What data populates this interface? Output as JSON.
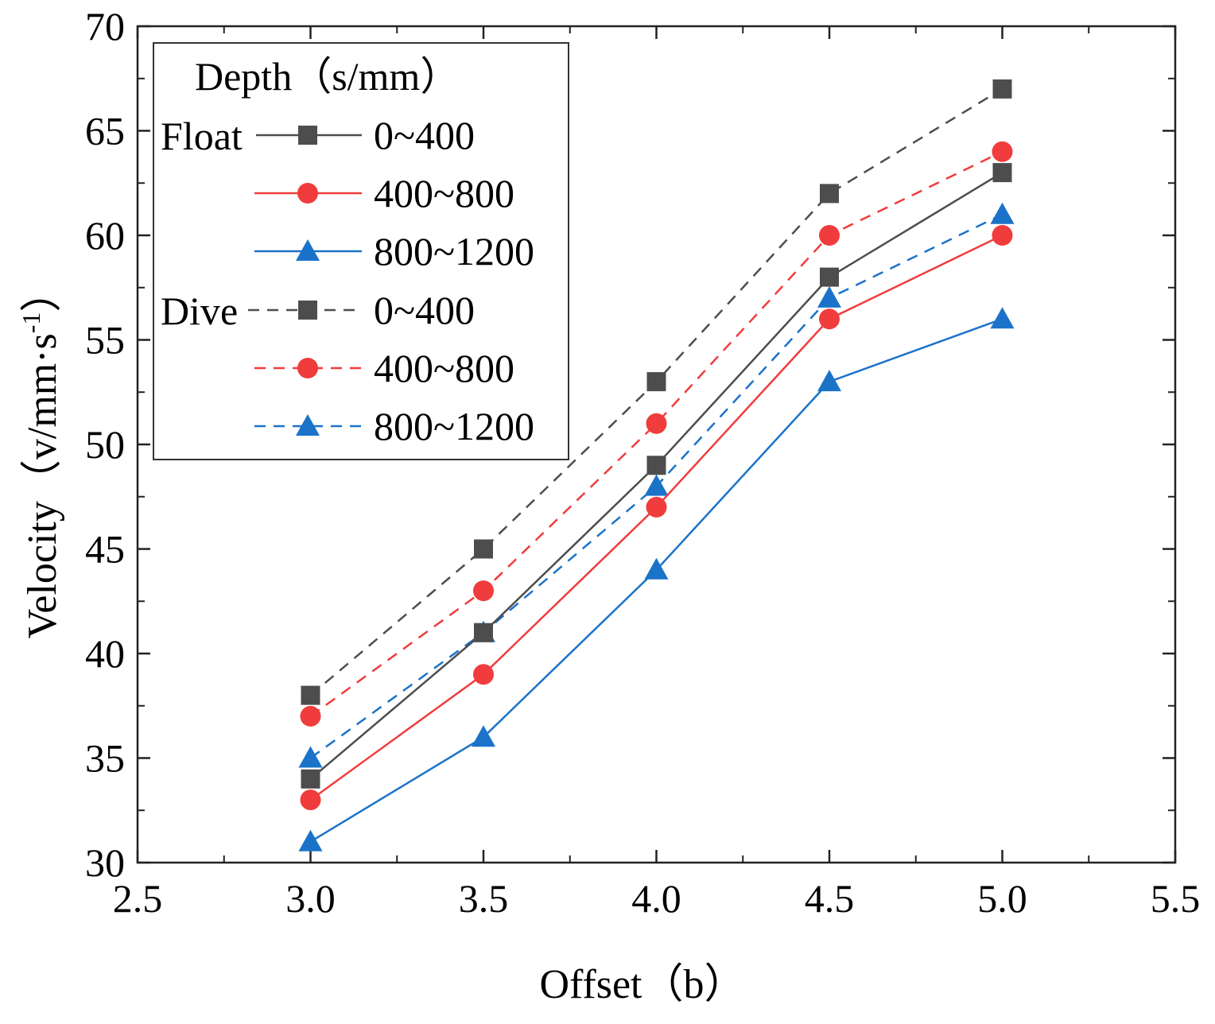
{
  "chart_data": {
    "type": "line",
    "title": "",
    "xlabel": "Offset（b）",
    "ylabel": "Velocity（v/mm·s",
    "ylabel_superscript": "-1",
    "ylabel_close": "）",
    "xlim": [
      2.5,
      5.5
    ],
    "ylim": [
      30,
      70
    ],
    "x_ticks": [
      2.5,
      3.0,
      3.5,
      4.0,
      4.5,
      5.0,
      5.5
    ],
    "x_tick_labels": [
      "2.5",
      "3.0",
      "3.5",
      "4.0",
      "4.5",
      "5.0",
      "5.5"
    ],
    "y_ticks": [
      30,
      35,
      40,
      45,
      50,
      55,
      60,
      65,
      70
    ],
    "y_tick_labels": [
      "30",
      "35",
      "40",
      "45",
      "50",
      "55",
      "60",
      "65",
      "70"
    ],
    "x": [
      3.0,
      3.5,
      4.0,
      4.5,
      5.0
    ],
    "legend": {
      "title": "Depth（s/mm）",
      "group_labels": [
        "Float",
        "Dive"
      ],
      "placement": "top-left"
    },
    "series": [
      {
        "name": "0~400",
        "group": "Float",
        "color": "#4d4d4d",
        "marker": "square",
        "dash": "solid",
        "values": [
          34,
          41,
          49,
          58,
          63
        ]
      },
      {
        "name": "400~800",
        "group": "Float",
        "color": "#f03c3c",
        "marker": "circle",
        "dash": "solid",
        "values": [
          33,
          39,
          47,
          56,
          60
        ]
      },
      {
        "name": "800~1200",
        "group": "Float",
        "color": "#1a73c9",
        "marker": "triangle",
        "dash": "solid",
        "values": [
          31,
          36,
          44,
          53,
          56
        ]
      },
      {
        "name": "0~400",
        "group": "Dive",
        "color": "#4d4d4d",
        "marker": "square",
        "dash": "dashed",
        "values": [
          38,
          45,
          53,
          62,
          67
        ]
      },
      {
        "name": "400~800",
        "group": "Dive",
        "color": "#f03c3c",
        "marker": "circle",
        "dash": "dashed",
        "values": [
          37,
          43,
          51,
          60,
          64
        ]
      },
      {
        "name": "800~1200",
        "group": "Dive",
        "color": "#1a73c9",
        "marker": "triangle",
        "dash": "dashed",
        "values": [
          35,
          41,
          48,
          57,
          61
        ]
      }
    ]
  }
}
